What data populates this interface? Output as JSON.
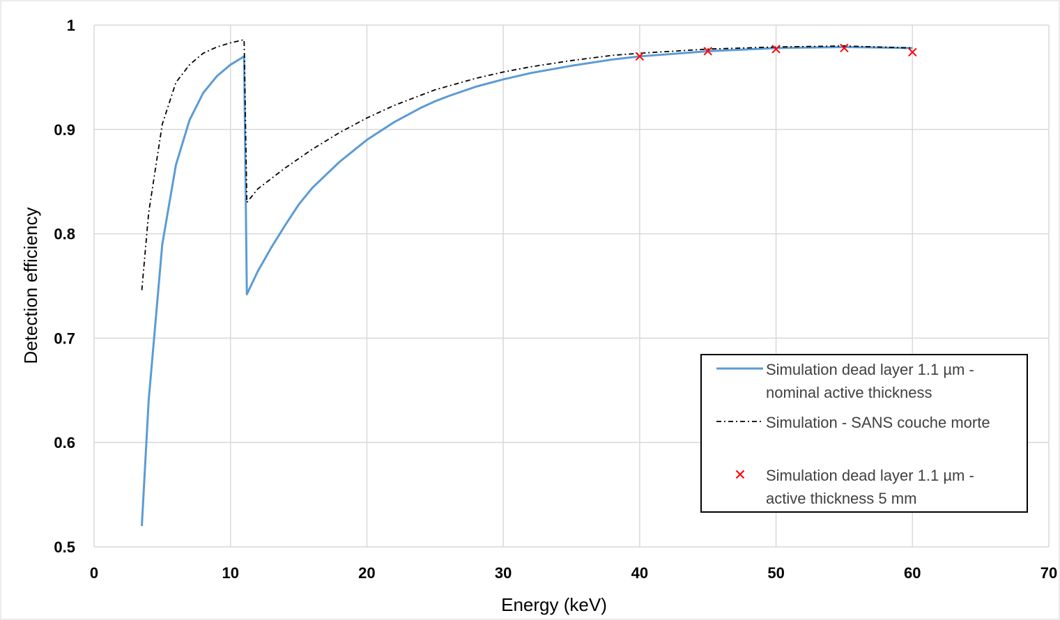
{
  "chart_data": {
    "type": "line",
    "title": "",
    "xlabel": "Energy (keV)",
    "ylabel": "Detection efficiency",
    "xlim": [
      0,
      70
    ],
    "ylim": [
      0.5,
      1
    ],
    "xticks": [
      0,
      10,
      20,
      30,
      40,
      50,
      60,
      70
    ],
    "yticks": [
      0.5,
      0.6,
      0.7,
      0.8,
      0.9,
      1
    ],
    "xtick_labels": [
      "0",
      "10",
      "20",
      "30",
      "40",
      "50",
      "60",
      "70"
    ],
    "ytick_labels": [
      "0.5",
      "0.6",
      "0.7",
      "0.8",
      "0.9",
      "1"
    ],
    "grid": true,
    "legend_position": "bottom-right",
    "series": [
      {
        "name_lines": [
          "Simulation dead layer 1.1 µm -",
          "nominal active thickness"
        ],
        "style": "solid",
        "color": "#5b9bd5",
        "x": [
          3.5,
          4,
          5,
          6,
          7,
          8,
          9,
          10,
          11,
          11.2,
          12,
          13,
          14,
          15,
          16,
          18,
          20,
          22,
          24,
          25,
          26,
          28,
          30,
          32,
          35,
          38,
          40,
          45,
          50,
          55,
          60
        ],
        "y": [
          0.52,
          0.64,
          0.79,
          0.866,
          0.909,
          0.935,
          0.951,
          0.962,
          0.97,
          0.742,
          0.764,
          0.787,
          0.808,
          0.828,
          0.844,
          0.869,
          0.89,
          0.907,
          0.921,
          0.927,
          0.932,
          0.941,
          0.948,
          0.954,
          0.961,
          0.967,
          0.97,
          0.975,
          0.978,
          0.979,
          0.978
        ]
      },
      {
        "name_lines": [
          "Simulation - SANS couche morte"
        ],
        "style": "dashdot",
        "color": "#000000",
        "x": [
          3.5,
          4,
          5,
          6,
          7,
          8,
          9,
          10,
          11,
          11.2,
          12,
          14,
          16,
          18,
          20,
          22,
          25,
          28,
          30,
          32,
          35,
          38,
          40,
          45,
          50,
          55,
          60
        ],
        "y": [
          0.746,
          0.82,
          0.905,
          0.945,
          0.962,
          0.973,
          0.979,
          0.983,
          0.986,
          0.83,
          0.843,
          0.863,
          0.881,
          0.897,
          0.911,
          0.923,
          0.938,
          0.949,
          0.955,
          0.96,
          0.966,
          0.971,
          0.973,
          0.977,
          0.979,
          0.98,
          0.978
        ]
      },
      {
        "name_lines": [
          "Simulation dead layer 1.1 µm -",
          "active thickness 5 mm"
        ],
        "style": "markers",
        "marker": "x",
        "color": "#ff0000",
        "x": [
          40,
          45,
          50,
          55,
          60
        ],
        "y": [
          0.97,
          0.975,
          0.977,
          0.978,
          0.974
        ]
      }
    ]
  }
}
